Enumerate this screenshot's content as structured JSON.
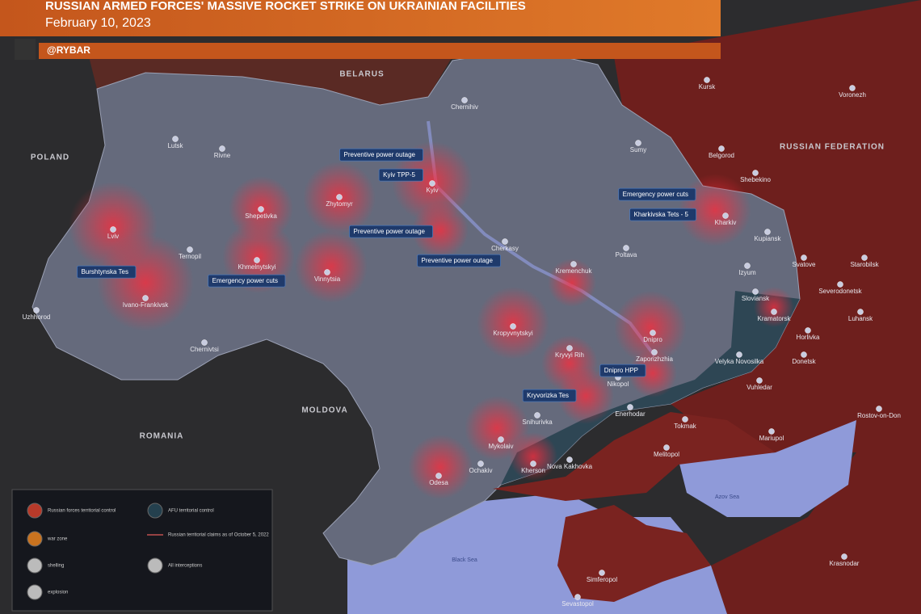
{
  "header": {
    "title": "RUSSIAN ARMED FORCES' MASSIVE ROCKET STRIKE ON UKRAINIAN FACILITIES",
    "date": "February 10, 2023",
    "handle": "@RYBAR"
  },
  "countries": [
    "BELARUS",
    "POLAND",
    "ROMANIA",
    "MOLDOVA",
    "RUSSIAN FEDERATION"
  ],
  "seas": [
    "Black Sea",
    "Azov Sea"
  ],
  "cities": [
    "Lutsk",
    "Rivne",
    "Lviv",
    "Ternopil",
    "Uzhhorod",
    "Ivano-Frankivsk",
    "Chernivtsi",
    "Khmelnytskyi",
    "Shepetivka",
    "Zhytomyr",
    "Vinnytsia",
    "Kyiv",
    "Chernihiv",
    "Sumy",
    "Poltava",
    "Kharkiv",
    "Kupiansk",
    "Izyum",
    "Sloviansk",
    "Kramatorsk",
    "Cherkasy",
    "Kremenchuk",
    "Kropyvnytskyi",
    "Dnipro",
    "Kryvyi Rih",
    "Zaporizhzhia",
    "Nikopol",
    "Enerhodar",
    "Mykolaiv",
    "Odesa",
    "Ochakiv",
    "Kherson",
    "Nova Kakhovka",
    "Snihurivka",
    "Tokmak",
    "Melitopol",
    "Mariupol",
    "Donetsk",
    "Vuhledar",
    "Velyka Novosilka",
    "Horlivka",
    "Luhansk",
    "Svatove",
    "Starobilsk",
    "Severodonetsk",
    "Belgorod",
    "Shebekino",
    "Kursk",
    "Voronezh",
    "Rostov-on-Don",
    "Krasnodar",
    "Simferopol",
    "Sevastopol"
  ],
  "callouts": [
    "Preventive power outage",
    "Kyiv TPP-5",
    "Preventive power outage",
    "Preventive power outage",
    "Emergency power cuts",
    "Burshtynska Tes",
    "Emergency power cuts",
    "Kharkivska Tets - 5",
    "Dnipro HPP",
    "Kryvorizka Tes"
  ],
  "legend": [
    "Russian forces territorial control",
    "AFU territorial control",
    "war zone",
    "Russian territorial claims as of October 5, 2022",
    "shelling",
    "All interceptions",
    "explosion"
  ]
}
